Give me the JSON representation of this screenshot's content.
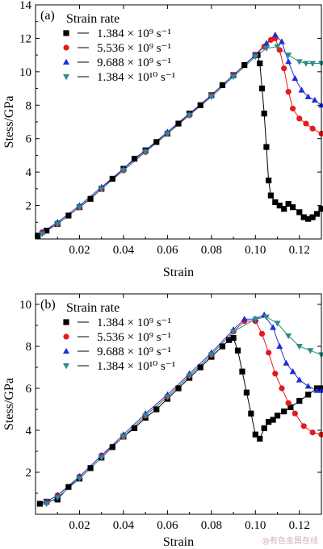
{
  "watermark": "@有色金属在线",
  "chart_data": [
    {
      "type": "line",
      "panel_label": "(a)",
      "xlabel": "Strain",
      "ylabel": "Stess/GPa",
      "xlim": [
        0,
        0.13
      ],
      "ylim": [
        0,
        14
      ],
      "xticks": [
        0.02,
        0.04,
        0.06,
        0.08,
        0.1,
        0.12
      ],
      "xtick_labels": [
        "0.02",
        "0.04",
        "0.06",
        "0.08",
        "0.10",
        "0.12"
      ],
      "yticks": [
        2,
        4,
        6,
        8,
        10,
        12,
        14
      ],
      "ytick_labels": [
        "2",
        "4",
        "6",
        "8",
        "10",
        "12",
        "14"
      ],
      "legend_title": "Strain rate",
      "legend_position": "top-left",
      "series": [
        {
          "name": "1.384 × 10⁹ s⁻¹",
          "marker": "square",
          "color": "#000000",
          "x": [
            0.001,
            0.005,
            0.01,
            0.015,
            0.02,
            0.025,
            0.03,
            0.035,
            0.04,
            0.045,
            0.05,
            0.055,
            0.06,
            0.065,
            0.07,
            0.075,
            0.08,
            0.085,
            0.09,
            0.095,
            0.1,
            0.101,
            0.102,
            0.103,
            0.104,
            0.105,
            0.106,
            0.107,
            0.109,
            0.111,
            0.113,
            0.115,
            0.117,
            0.12,
            0.122,
            0.124,
            0.126,
            0.128,
            0.13
          ],
          "y": [
            0.2,
            0.5,
            0.9,
            1.4,
            1.9,
            2.4,
            3.0,
            3.6,
            4.2,
            4.8,
            5.3,
            5.8,
            6.3,
            6.9,
            7.5,
            8.0,
            8.6,
            9.2,
            9.8,
            10.4,
            11.0,
            11.0,
            10.5,
            9.0,
            7.5,
            5.5,
            3.5,
            2.6,
            2.2,
            2.0,
            1.8,
            2.1,
            1.9,
            1.6,
            1.3,
            1.2,
            1.3,
            1.5,
            1.8
          ]
        },
        {
          "name": "5.536 × 10⁹ s⁻¹",
          "marker": "circle",
          "color": "#e41a1c",
          "x": [
            0.003,
            0.01,
            0.02,
            0.03,
            0.04,
            0.05,
            0.06,
            0.07,
            0.08,
            0.09,
            0.1,
            0.104,
            0.107,
            0.109,
            0.111,
            0.113,
            0.115,
            0.117,
            0.12,
            0.123,
            0.126,
            0.13
          ],
          "y": [
            0.4,
            0.9,
            1.9,
            3.0,
            4.1,
            5.2,
            6.3,
            7.4,
            8.6,
            9.8,
            11.0,
            11.5,
            11.9,
            12.0,
            11.3,
            10.2,
            8.8,
            7.8,
            7.2,
            6.9,
            6.6,
            6.3
          ]
        },
        {
          "name": "9.688 × 10⁹ s⁻¹",
          "marker": "triangle-up",
          "color": "#1f2fd6",
          "x": [
            0.003,
            0.01,
            0.02,
            0.03,
            0.04,
            0.05,
            0.06,
            0.07,
            0.08,
            0.09,
            0.1,
            0.105,
            0.109,
            0.112,
            0.115,
            0.118,
            0.121,
            0.124,
            0.127,
            0.13
          ],
          "y": [
            0.4,
            1.0,
            2.0,
            3.1,
            4.2,
            5.3,
            6.4,
            7.5,
            8.6,
            9.8,
            11.0,
            11.7,
            12.2,
            11.8,
            10.6,
            9.6,
            8.9,
            8.5,
            8.3,
            8.0
          ]
        },
        {
          "name": "1.384 × 10¹⁰ s⁻¹",
          "marker": "triangle-down",
          "color": "#2e8b85",
          "x": [
            0.003,
            0.01,
            0.02,
            0.03,
            0.04,
            0.05,
            0.06,
            0.07,
            0.08,
            0.09,
            0.1,
            0.105,
            0.11,
            0.115,
            0.12,
            0.123,
            0.126,
            0.13
          ],
          "y": [
            0.3,
            0.9,
            1.9,
            3.0,
            4.1,
            5.2,
            6.3,
            7.4,
            8.5,
            9.7,
            10.9,
            11.4,
            11.5,
            11.0,
            10.6,
            10.5,
            10.5,
            10.5
          ]
        }
      ]
    },
    {
      "type": "line",
      "panel_label": "(b)",
      "xlabel": "Strain",
      "ylabel": "Stess/GPa",
      "xlim": [
        0,
        0.13
      ],
      "ylim": [
        0,
        10.5
      ],
      "xticks": [
        0.02,
        0.04,
        0.06,
        0.08,
        0.1,
        0.12
      ],
      "xtick_labels": [
        "0.02",
        "0.04",
        "0.06",
        "0.08",
        "0.10",
        "0.12"
      ],
      "yticks": [
        2,
        4,
        6,
        8,
        10
      ],
      "ytick_labels": [
        "2",
        "4",
        "6",
        "8",
        "10"
      ],
      "legend_title": "Strain rate",
      "legend_position": "top-left",
      "series": [
        {
          "name": "1.384 × 10⁹ s⁻¹",
          "marker": "square",
          "color": "#000000",
          "x": [
            0.002,
            0.005,
            0.01,
            0.015,
            0.02,
            0.025,
            0.03,
            0.035,
            0.04,
            0.045,
            0.05,
            0.055,
            0.06,
            0.065,
            0.07,
            0.075,
            0.08,
            0.085,
            0.088,
            0.09,
            0.092,
            0.094,
            0.096,
            0.098,
            0.1,
            0.102,
            0.104,
            0.106,
            0.108,
            0.11,
            0.113,
            0.116,
            0.12,
            0.124,
            0.128,
            0.13
          ],
          "y": [
            0.5,
            0.6,
            0.7,
            1.3,
            1.7,
            2.2,
            2.7,
            3.2,
            3.7,
            4.1,
            4.6,
            5.0,
            5.5,
            6.0,
            6.5,
            7.0,
            7.5,
            8.0,
            8.3,
            8.4,
            7.8,
            6.8,
            5.8,
            4.8,
            3.8,
            3.6,
            4.1,
            4.4,
            4.5,
            4.7,
            4.9,
            5.1,
            5.4,
            5.7,
            6.0,
            6.0
          ]
        },
        {
          "name": "5.536 × 10⁹ s⁻¹",
          "marker": "circle",
          "color": "#e41a1c",
          "x": [
            0.005,
            0.01,
            0.02,
            0.03,
            0.04,
            0.05,
            0.06,
            0.07,
            0.08,
            0.09,
            0.095,
            0.1,
            0.103,
            0.106,
            0.109,
            0.112,
            0.115,
            0.118,
            0.122,
            0.126,
            0.13
          ],
          "y": [
            0.6,
            0.9,
            1.8,
            2.8,
            3.7,
            4.7,
            5.6,
            6.6,
            7.6,
            8.7,
            9.2,
            9.2,
            8.6,
            7.7,
            6.7,
            6.0,
            5.3,
            4.8,
            4.2,
            3.9,
            3.8
          ]
        },
        {
          "name": "9.688 × 10⁹ s⁻¹",
          "marker": "triangle-up",
          "color": "#1f2fd6",
          "x": [
            0.005,
            0.01,
            0.02,
            0.03,
            0.04,
            0.05,
            0.06,
            0.07,
            0.08,
            0.09,
            0.095,
            0.1,
            0.104,
            0.108,
            0.111,
            0.114,
            0.117,
            0.12,
            0.124,
            0.128,
            0.13
          ],
          "y": [
            0.6,
            0.9,
            1.8,
            2.8,
            3.8,
            4.8,
            5.7,
            6.7,
            7.7,
            8.8,
            9.3,
            9.3,
            9.5,
            8.9,
            8.0,
            7.2,
            6.8,
            6.4,
            6.1,
            5.9,
            5.9
          ]
        },
        {
          "name": "1.384 × 10¹⁰ s⁻¹",
          "marker": "triangle-down",
          "color": "#2e8b85",
          "x": [
            0.005,
            0.01,
            0.02,
            0.03,
            0.04,
            0.05,
            0.06,
            0.07,
            0.08,
            0.09,
            0.1,
            0.105,
            0.11,
            0.115,
            0.12,
            0.125,
            0.13
          ],
          "y": [
            0.5,
            0.8,
            1.7,
            2.7,
            3.7,
            4.7,
            5.6,
            6.6,
            7.6,
            8.7,
            9.3,
            9.4,
            9.1,
            8.5,
            8.0,
            7.8,
            7.6
          ]
        }
      ]
    }
  ]
}
